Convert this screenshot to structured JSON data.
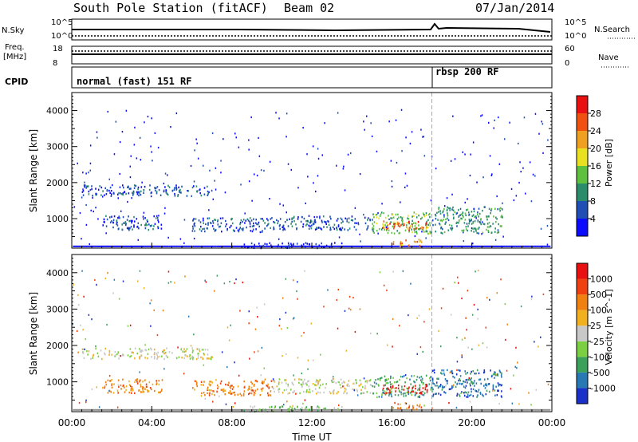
{
  "header": {
    "station": "South Pole Station (fitACF)",
    "beam": "Beam 02",
    "date": "07/Jan/2014"
  },
  "top_panels": {
    "nsky_label": "N.Sky",
    "nsky_ticks": [
      "10^5",
      "10^0"
    ],
    "nsearch_label": "N.Search",
    "nsearch_ticks": [
      "10^5",
      "10^0"
    ],
    "freq_label": "Freq.",
    "freq_unit": "[MHz]",
    "freq_ticks": [
      "18",
      "8"
    ],
    "nave_label": "Nave",
    "nave_ticks": [
      "60",
      "0"
    ],
    "cpid_label": "CPID",
    "cpid_segments": [
      {
        "label": "normal (fast) 151 RF",
        "start_hour": 0
      },
      {
        "label": "rbsp 200 RF",
        "start_hour": 18.0
      }
    ]
  },
  "x_axis": {
    "label": "Time UT",
    "ticks": [
      "00:00",
      "04:00",
      "08:00",
      "12:00",
      "16:00",
      "20:00",
      "00:00"
    ]
  },
  "chart_data": [
    {
      "type": "heatmap",
      "title": "",
      "xlabel": "Time UT",
      "ylabel": "Slant Range [km]",
      "ylim": [
        180,
        4500
      ],
      "xlim": [
        0,
        24
      ],
      "yticks": [
        "1000",
        "2000",
        "3000",
        "4000"
      ],
      "colorbar": {
        "label": "Power [dB]",
        "ticks": [
          "4",
          "8",
          "12",
          "16",
          "20",
          "24",
          "28"
        ],
        "colors": [
          "#0b0bff",
          "#1f4fb4",
          "#2a8c6a",
          "#5fc040",
          "#e8e020",
          "#f0a020",
          "#f05010",
          "#e81010"
        ]
      },
      "regions": [
        {
          "t0": 0.5,
          "t1": 7.0,
          "r0": 1650,
          "r1": 1950,
          "level": 1
        },
        {
          "t0": 1.5,
          "t1": 4.5,
          "r0": 700,
          "r1": 1100,
          "level": 1
        },
        {
          "t0": 6.0,
          "t1": 10.0,
          "r0": 650,
          "r1": 1050,
          "level": 1
        },
        {
          "t0": 10.0,
          "t1": 15.0,
          "r0": 700,
          "r1": 1100,
          "level": 1
        },
        {
          "t0": 15.0,
          "t1": 18.0,
          "r0": 600,
          "r1": 1200,
          "level": 3
        },
        {
          "t0": 15.5,
          "t1": 17.8,
          "r0": 700,
          "r1": 950,
          "level": 6
        },
        {
          "t0": 18.0,
          "t1": 21.5,
          "r0": 600,
          "r1": 1350,
          "level": 2
        },
        {
          "t0": 8.5,
          "t1": 13.5,
          "r0": 200,
          "r1": 350,
          "level": 0
        },
        {
          "t0": 16.0,
          "t1": 17.5,
          "r0": 250,
          "r1": 450,
          "level": 5
        }
      ]
    },
    {
      "type": "heatmap",
      "title": "",
      "xlabel": "Time UT",
      "ylabel": "Slant Range [km]",
      "ylim": [
        180,
        4500
      ],
      "xlim": [
        0,
        24
      ],
      "yticks": [
        "1000",
        "2000",
        "3000",
        "4000"
      ],
      "colorbar": {
        "label": "Velocity [m s^-1]",
        "ticks": [
          "1000",
          "500",
          "100",
          "25",
          "-25",
          "-100",
          "-500",
          "-1000"
        ],
        "colors": [
          "#1a30c8",
          "#2878b4",
          "#3aa05a",
          "#7ad040",
          "#c8c8c8",
          "#f0b020",
          "#f08010",
          "#f04010",
          "#e81010"
        ]
      },
      "regions": [
        {
          "t0": 0.5,
          "t1": 7.0,
          "r0": 1650,
          "r1": 1950,
          "level": 4
        },
        {
          "t0": 1.5,
          "t1": 4.5,
          "r0": 700,
          "r1": 1100,
          "level": 6
        },
        {
          "t0": 6.0,
          "t1": 10.0,
          "r0": 650,
          "r1": 1050,
          "level": 6
        },
        {
          "t0": 10.0,
          "t1": 15.0,
          "r0": 700,
          "r1": 1100,
          "level": 4
        },
        {
          "t0": 15.0,
          "t1": 18.0,
          "r0": 600,
          "r1": 1200,
          "level": 2
        },
        {
          "t0": 15.5,
          "t1": 17.8,
          "r0": 700,
          "r1": 950,
          "level": 8
        },
        {
          "t0": 18.0,
          "t1": 21.5,
          "r0": 600,
          "r1": 1350,
          "level": 1
        },
        {
          "t0": 8.5,
          "t1": 13.5,
          "r0": 200,
          "r1": 350,
          "level": 3
        },
        {
          "t0": 16.0,
          "t1": 17.5,
          "r0": 250,
          "r1": 450,
          "level": 6
        }
      ]
    }
  ]
}
